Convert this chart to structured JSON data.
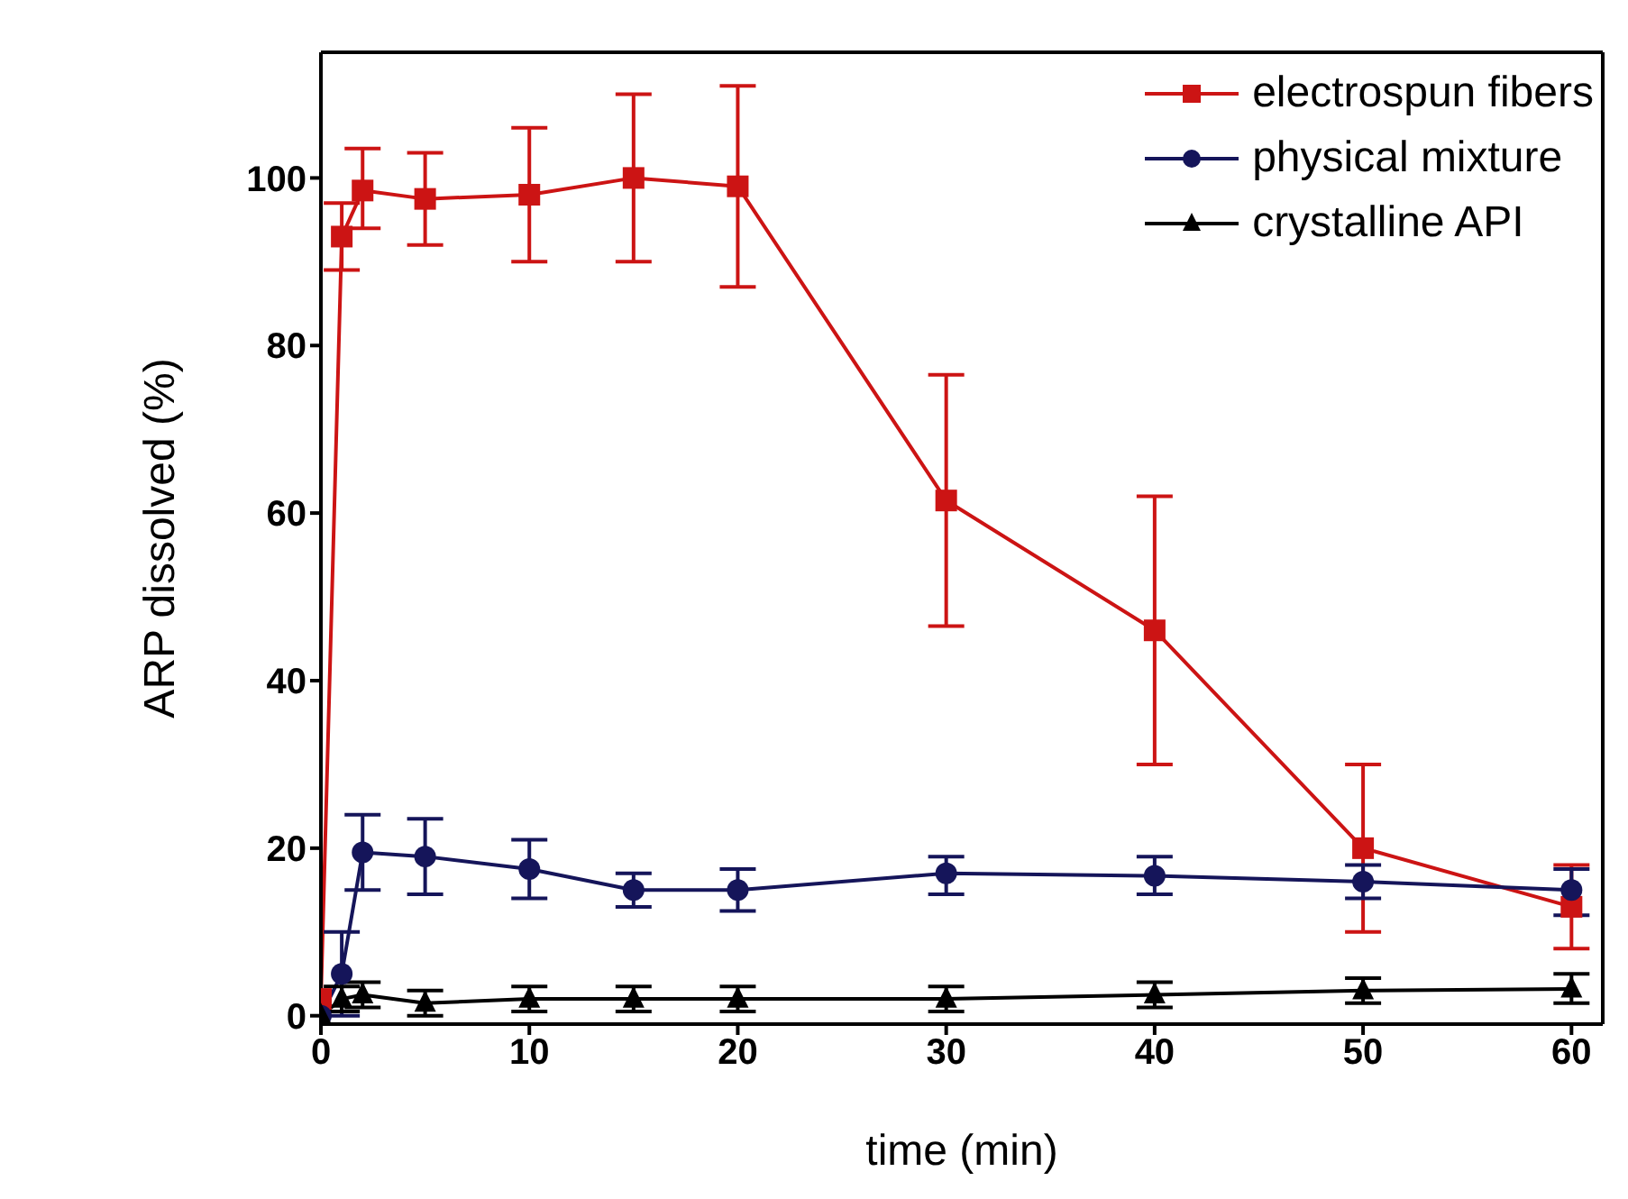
{
  "chart_data": {
    "type": "line",
    "xlabel": "time (min)",
    "ylabel": "ARP dissolved (%)",
    "x": [
      0,
      1,
      2,
      5,
      10,
      15,
      20,
      30,
      40,
      50,
      60
    ],
    "xlim": [
      0,
      61.5
    ],
    "xticks": [
      0,
      10,
      20,
      30,
      40,
      50,
      60
    ],
    "ylim": [
      -1,
      115
    ],
    "yticks": [
      0,
      20,
      40,
      60,
      80,
      100
    ],
    "legend": "top right",
    "grid": false,
    "line_style": "solid",
    "series": [
      {
        "name": "electrospun fibers",
        "color": "#cc1414",
        "marker": "square",
        "values": [
          2,
          93,
          98.5,
          97.5,
          98,
          100,
          99,
          61.5,
          46,
          20,
          13
        ],
        "errors": [
          null,
          [
            89,
            97
          ],
          [
            94,
            103.5
          ],
          [
            92,
            103
          ],
          [
            90,
            106
          ],
          [
            90,
            110
          ],
          [
            87,
            111
          ],
          [
            46.5,
            76.5
          ],
          [
            30,
            62
          ],
          [
            10,
            30
          ],
          [
            8,
            18
          ]
        ]
      },
      {
        "name": "physical mixture",
        "color": "#15155a",
        "marker": "circle",
        "values": [
          0,
          5,
          19.5,
          19,
          17.5,
          15,
          15,
          17,
          16.7,
          16,
          15
        ],
        "errors": [
          null,
          [
            0,
            10
          ],
          [
            15,
            24
          ],
          [
            14.5,
            23.5
          ],
          [
            14,
            21
          ],
          [
            13,
            17
          ],
          [
            12.5,
            17.5
          ],
          [
            14.5,
            19
          ],
          [
            14.5,
            19
          ],
          [
            14,
            18
          ],
          [
            12,
            17.5
          ]
        ]
      },
      {
        "name": "crystalline API",
        "color": "#000000",
        "marker": "triangle",
        "values": [
          0,
          2,
          2.5,
          1.5,
          2,
          2,
          2,
          2,
          2.5,
          3,
          3.2
        ],
        "errors": [
          null,
          [
            0.5,
            3.5
          ],
          [
            1,
            4
          ],
          [
            0,
            3
          ],
          [
            0.5,
            3.5
          ],
          [
            0.5,
            3.5
          ],
          [
            0.5,
            3.5
          ],
          [
            0.5,
            3.5
          ],
          [
            1,
            4
          ],
          [
            1.5,
            4.5
          ],
          [
            1.5,
            5
          ]
        ]
      }
    ]
  }
}
